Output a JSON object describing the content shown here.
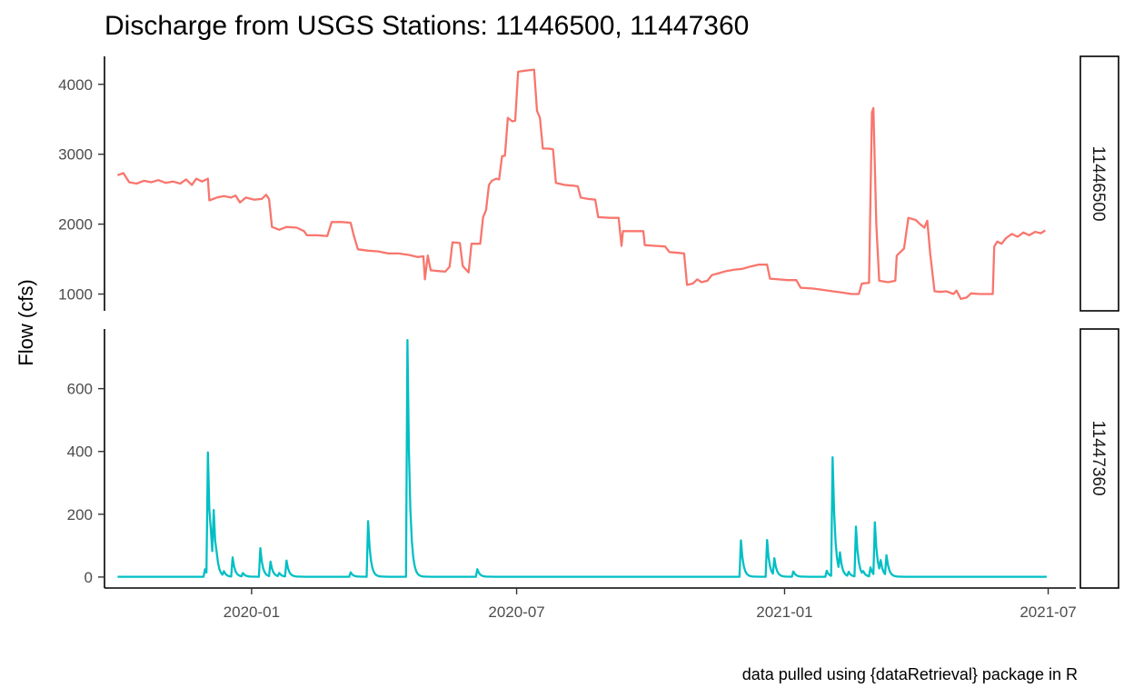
{
  "chart_data": {
    "type": "line",
    "title": "Discharge from USGS Stations: 11446500, 11447360",
    "ylabel": "Flow (cfs)",
    "xlabel": "",
    "caption": "data pulled using {dataRetrieval} package in R",
    "x_axis": {
      "type": "date",
      "range": [
        "2019-09-22",
        "2021-07-20"
      ],
      "ticks": [
        "2020-01-01",
        "2020-07-01",
        "2021-01-01",
        "2021-07-01"
      ],
      "tick_labels": [
        "2020-01",
        "2020-07",
        "2021-01",
        "2021-07"
      ]
    },
    "facets": [
      {
        "strip_label": "11446500",
        "color": "#F8766D",
        "ylim": [
          760,
          4400
        ],
        "y_ticks": [
          1000,
          2000,
          3000,
          4000
        ],
        "y_tick_labels": [
          "1000",
          "2000",
          "3000",
          "4000"
        ],
        "series": {
          "name": "11446500",
          "points": [
            [
              "2019-10-01",
              2700
            ],
            [
              "2019-10-05",
              2730
            ],
            [
              "2019-10-09",
              2600
            ],
            [
              "2019-10-14",
              2580
            ],
            [
              "2019-10-19",
              2620
            ],
            [
              "2019-10-24",
              2600
            ],
            [
              "2019-10-29",
              2630
            ],
            [
              "2019-11-03",
              2590
            ],
            [
              "2019-11-08",
              2610
            ],
            [
              "2019-11-13",
              2580
            ],
            [
              "2019-11-17",
              2640
            ],
            [
              "2019-11-21",
              2560
            ],
            [
              "2019-11-24",
              2650
            ],
            [
              "2019-11-28",
              2610
            ],
            [
              "2019-12-02",
              2650
            ],
            [
              "2019-12-03",
              2340
            ],
            [
              "2019-12-08",
              2380
            ],
            [
              "2019-12-13",
              2400
            ],
            [
              "2019-12-18",
              2380
            ],
            [
              "2019-12-21",
              2410
            ],
            [
              "2019-12-24",
              2310
            ],
            [
              "2019-12-28",
              2380
            ],
            [
              "2020-01-03",
              2350
            ],
            [
              "2020-01-08",
              2360
            ],
            [
              "2020-01-11",
              2420
            ],
            [
              "2020-01-13",
              2360
            ],
            [
              "2020-01-15",
              1960
            ],
            [
              "2020-01-20",
              1920
            ],
            [
              "2020-01-25",
              1960
            ],
            [
              "2020-02-01",
              1950
            ],
            [
              "2020-02-06",
              1900
            ],
            [
              "2020-02-08",
              1840
            ],
            [
              "2020-02-15",
              1840
            ],
            [
              "2020-02-22",
              1830
            ],
            [
              "2020-02-25",
              2030
            ],
            [
              "2020-03-03",
              2030
            ],
            [
              "2020-03-09",
              2020
            ],
            [
              "2020-03-11",
              1850
            ],
            [
              "2020-03-14",
              1640
            ],
            [
              "2020-03-21",
              1620
            ],
            [
              "2020-03-28",
              1610
            ],
            [
              "2020-04-04",
              1580
            ],
            [
              "2020-04-11",
              1580
            ],
            [
              "2020-04-18",
              1560
            ],
            [
              "2020-04-24",
              1530
            ],
            [
              "2020-04-28",
              1540
            ],
            [
              "2020-04-29",
              1210
            ],
            [
              "2020-05-01",
              1550
            ],
            [
              "2020-05-03",
              1340
            ],
            [
              "2020-05-08",
              1330
            ],
            [
              "2020-05-13",
              1320
            ],
            [
              "2020-05-16",
              1390
            ],
            [
              "2020-05-18",
              1740
            ],
            [
              "2020-05-23",
              1730
            ],
            [
              "2020-05-25",
              1400
            ],
            [
              "2020-05-29",
              1310
            ],
            [
              "2020-05-31",
              1720
            ],
            [
              "2020-06-06",
              1720
            ],
            [
              "2020-06-08",
              2100
            ],
            [
              "2020-06-10",
              2200
            ],
            [
              "2020-06-12",
              2560
            ],
            [
              "2020-06-14",
              2620
            ],
            [
              "2020-06-17",
              2650
            ],
            [
              "2020-06-19",
              2640
            ],
            [
              "2020-06-21",
              2970
            ],
            [
              "2020-06-23",
              2980
            ],
            [
              "2020-06-25",
              3520
            ],
            [
              "2020-06-28",
              3470
            ],
            [
              "2020-06-30",
              3480
            ],
            [
              "2020-07-02",
              4180
            ],
            [
              "2020-07-05",
              4190
            ],
            [
              "2020-07-09",
              4200
            ],
            [
              "2020-07-13",
              4210
            ],
            [
              "2020-07-15",
              3620
            ],
            [
              "2020-07-17",
              3520
            ],
            [
              "2020-07-19",
              3080
            ],
            [
              "2020-07-23",
              3080
            ],
            [
              "2020-07-26",
              3070
            ],
            [
              "2020-07-28",
              2590
            ],
            [
              "2020-08-03",
              2560
            ],
            [
              "2020-08-09",
              2550
            ],
            [
              "2020-08-12",
              2540
            ],
            [
              "2020-08-14",
              2380
            ],
            [
              "2020-08-19",
              2360
            ],
            [
              "2020-08-24",
              2350
            ],
            [
              "2020-08-26",
              2100
            ],
            [
              "2020-09-03",
              2090
            ],
            [
              "2020-09-09",
              2090
            ],
            [
              "2020-09-11",
              1690
            ],
            [
              "2020-09-12",
              1900
            ],
            [
              "2020-09-20",
              1900
            ],
            [
              "2020-09-26",
              1900
            ],
            [
              "2020-09-27",
              1700
            ],
            [
              "2020-10-04",
              1690
            ],
            [
              "2020-10-11",
              1680
            ],
            [
              "2020-10-14",
              1600
            ],
            [
              "2020-10-20",
              1590
            ],
            [
              "2020-10-24",
              1580
            ],
            [
              "2020-10-26",
              1130
            ],
            [
              "2020-10-30",
              1150
            ],
            [
              "2020-11-02",
              1210
            ],
            [
              "2020-11-05",
              1170
            ],
            [
              "2020-11-09",
              1190
            ],
            [
              "2020-11-12",
              1270
            ],
            [
              "2020-11-17",
              1300
            ],
            [
              "2020-11-22",
              1330
            ],
            [
              "2020-11-28",
              1350
            ],
            [
              "2020-12-03",
              1360
            ],
            [
              "2020-12-08",
              1390
            ],
            [
              "2020-12-14",
              1420
            ],
            [
              "2020-12-20",
              1420
            ],
            [
              "2020-12-22",
              1220
            ],
            [
              "2020-12-28",
              1210
            ],
            [
              "2021-01-03",
              1200
            ],
            [
              "2021-01-09",
              1200
            ],
            [
              "2021-01-12",
              1090
            ],
            [
              "2021-01-20",
              1080
            ],
            [
              "2021-01-27",
              1060
            ],
            [
              "2021-02-03",
              1040
            ],
            [
              "2021-02-10",
              1020
            ],
            [
              "2021-02-16",
              1000
            ],
            [
              "2021-02-21",
              1000
            ],
            [
              "2021-02-23",
              1150
            ],
            [
              "2021-02-28",
              1160
            ],
            [
              "2021-03-02",
              3600
            ],
            [
              "2021-03-03",
              3660
            ],
            [
              "2021-03-05",
              2000
            ],
            [
              "2021-03-07",
              1190
            ],
            [
              "2021-03-13",
              1170
            ],
            [
              "2021-03-18",
              1190
            ],
            [
              "2021-03-19",
              1550
            ],
            [
              "2021-03-24",
              1650
            ],
            [
              "2021-03-27",
              2090
            ],
            [
              "2021-04-01",
              2060
            ],
            [
              "2021-04-04",
              2000
            ],
            [
              "2021-04-07",
              1950
            ],
            [
              "2021-04-09",
              2050
            ],
            [
              "2021-04-11",
              1580
            ],
            [
              "2021-04-14",
              1040
            ],
            [
              "2021-04-18",
              1030
            ],
            [
              "2021-04-22",
              1040
            ],
            [
              "2021-04-27",
              1000
            ],
            [
              "2021-04-29",
              1050
            ],
            [
              "2021-05-02",
              930
            ],
            [
              "2021-05-06",
              950
            ],
            [
              "2021-05-09",
              1010
            ],
            [
              "2021-05-15",
              1000
            ],
            [
              "2021-05-21",
              1000
            ],
            [
              "2021-05-24",
              1000
            ],
            [
              "2021-05-25",
              1680
            ],
            [
              "2021-05-27",
              1750
            ],
            [
              "2021-05-30",
              1720
            ],
            [
              "2021-06-02",
              1800
            ],
            [
              "2021-06-06",
              1860
            ],
            [
              "2021-06-10",
              1820
            ],
            [
              "2021-06-14",
              1880
            ],
            [
              "2021-06-18",
              1840
            ],
            [
              "2021-06-22",
              1890
            ],
            [
              "2021-06-26",
              1870
            ],
            [
              "2021-06-29",
              1910
            ]
          ]
        }
      },
      {
        "strip_label": "11447360",
        "color": "#00BFC4",
        "ylim": [
          -35,
          790
        ],
        "y_ticks": [
          0,
          200,
          400,
          600
        ],
        "y_tick_labels": [
          "0",
          "200",
          "400",
          "600"
        ],
        "series": {
          "name": "11447360",
          "baseline": 1,
          "start": "2019-10-01",
          "end": "2021-06-30",
          "peaks": [
            [
              "2019-11-30",
              25
            ],
            [
              "2019-12-02",
              390
            ],
            [
              "2019-12-04",
              40
            ],
            [
              "2019-12-06",
              170
            ],
            [
              "2019-12-08",
              20
            ],
            [
              "2019-12-13",
              15
            ],
            [
              "2019-12-19",
              62
            ],
            [
              "2019-12-26",
              12
            ],
            [
              "2020-01-07",
              92
            ],
            [
              "2020-01-14",
              48
            ],
            [
              "2020-01-20",
              12
            ],
            [
              "2020-01-25",
              52
            ],
            [
              "2020-03-09",
              15
            ],
            [
              "2020-03-21",
              178
            ],
            [
              "2020-04-17",
              755
            ],
            [
              "2020-06-04",
              25
            ],
            [
              "2020-12-02",
              117
            ],
            [
              "2020-12-20",
              118
            ],
            [
              "2020-12-25",
              55
            ],
            [
              "2021-01-07",
              18
            ],
            [
              "2021-01-30",
              20
            ],
            [
              "2021-02-03",
              380
            ],
            [
              "2021-02-08",
              62
            ],
            [
              "2021-02-14",
              15
            ],
            [
              "2021-02-19",
              160
            ],
            [
              "2021-02-24",
              12
            ],
            [
              "2021-03-01",
              30
            ],
            [
              "2021-03-04",
              170
            ],
            [
              "2021-03-08",
              40
            ],
            [
              "2021-03-12",
              65
            ]
          ]
        }
      }
    ]
  }
}
